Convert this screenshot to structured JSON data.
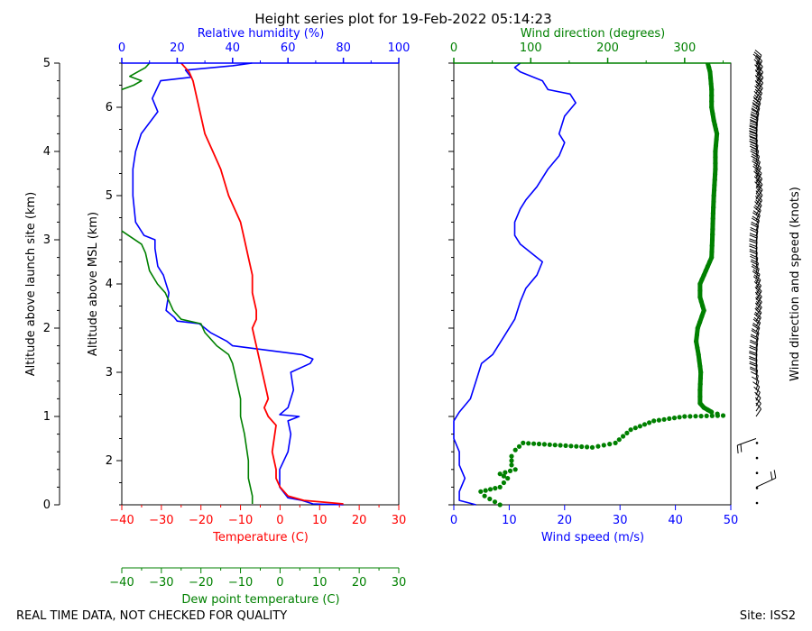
{
  "title": "Height series plot for 19-Feb-2022 05:14:23",
  "footer": {
    "quality_note": "REAL TIME DATA, NOT CHECKED FOR QUALITY",
    "site": "Site: ISS2"
  },
  "colors": {
    "temperature": "#ff0000",
    "dew_point": "#008000",
    "humidity": "#0000ff",
    "wind_speed": "#0000ff",
    "wind_direction": "#008000",
    "barbs": "#000000"
  },
  "chart_data": [
    {
      "type": "line",
      "name": "thermo-panel",
      "left_axis": {
        "label": "Altitude above launch site (km)",
        "ticks": [
          "0",
          "1",
          "2",
          "3",
          "4",
          "5"
        ],
        "lim": [
          0,
          5
        ]
      },
      "inner_axis": {
        "label": "Altitude above MSL (km)",
        "ticks": [
          "2",
          "3",
          "4",
          "5",
          "6"
        ],
        "lim": [
          1.5,
          6.5
        ]
      },
      "bottom_axis": {
        "label": "Temperature (C)",
        "ticks": [
          "−40",
          "−30",
          "−20",
          "−10",
          "0",
          "10",
          "20",
          "30"
        ],
        "lim": [
          -40,
          30
        ]
      },
      "bottom_axis_2": {
        "label": "Dew point temperature (C)",
        "ticks": [
          "−40",
          "−30",
          "−20",
          "−10",
          "0",
          "10",
          "20",
          "30"
        ],
        "lim": [
          -40,
          30
        ]
      },
      "top_axis": {
        "label": "Relative humidity (%)",
        "ticks": [
          "0",
          "20",
          "40",
          "60",
          "80",
          "100"
        ],
        "lim": [
          0,
          100
        ]
      },
      "series": [
        {
          "name": "Temperature",
          "x_units": "C",
          "points": [
            [
              16,
              0.01
            ],
            [
              6,
              0.05
            ],
            [
              2,
              0.1
            ],
            [
              0,
              0.2
            ],
            [
              -1,
              0.3
            ],
            [
              -1,
              0.4
            ],
            [
              -2,
              0.6
            ],
            [
              -1,
              0.9
            ],
            [
              -3,
              1.0
            ],
            [
              -4,
              1.1
            ],
            [
              -3,
              1.2
            ],
            [
              -4,
              1.4
            ],
            [
              -5,
              1.6
            ],
            [
              -6,
              1.8
            ],
            [
              -7,
              2.0
            ],
            [
              -6,
              2.1
            ],
            [
              -6,
              2.2
            ],
            [
              -7,
              2.4
            ],
            [
              -7,
              2.6
            ],
            [
              -8,
              2.8
            ],
            [
              -9,
              3.0
            ],
            [
              -10,
              3.2
            ],
            [
              -11,
              3.3
            ],
            [
              -13,
              3.5
            ],
            [
              -15,
              3.8
            ],
            [
              -17,
              4.0
            ],
            [
              -19,
              4.2
            ],
            [
              -20,
              4.4
            ],
            [
              -21,
              4.6
            ],
            [
              -22,
              4.8
            ],
            [
              -23,
              4.9
            ],
            [
              -25,
              5.0
            ]
          ]
        },
        {
          "name": "Dew point",
          "x_units": "C",
          "points": [
            [
              -7,
              0.01
            ],
            [
              -7,
              0.1
            ],
            [
              -8,
              0.3
            ],
            [
              -8,
              0.5
            ],
            [
              -9,
              0.8
            ],
            [
              -10,
              1.0
            ],
            [
              -10,
              1.2
            ],
            [
              -11,
              1.4
            ],
            [
              -12,
              1.6
            ],
            [
              -13,
              1.7
            ],
            [
              -16,
              1.8
            ],
            [
              -19,
              1.95
            ],
            [
              -20,
              2.05
            ],
            [
              -25,
              2.1
            ],
            [
              -27,
              2.2
            ],
            [
              -29,
              2.4
            ],
            [
              -31,
              2.5
            ],
            [
              -33,
              2.65
            ],
            [
              -34,
              2.85
            ],
            [
              -35,
              2.95
            ],
            [
              -40,
              3.1
            ]
          ]
        },
        {
          "name": "Dew point (upper)",
          "x_units": "C",
          "points": [
            [
              -40,
              4.7
            ],
            [
              -37,
              4.75
            ],
            [
              -35,
              4.8
            ],
            [
              -38,
              4.85
            ],
            [
              -36,
              4.9
            ],
            [
              -34,
              4.95
            ],
            [
              -33,
              5.0
            ]
          ]
        },
        {
          "name": "Relative humidity",
          "x_units": "%",
          "points": [
            [
              80,
              0.0
            ],
            [
              69,
              0.01
            ],
            [
              65,
              0.05
            ],
            [
              60,
              0.08
            ],
            [
              57,
              0.2
            ],
            [
              57,
              0.4
            ],
            [
              60,
              0.6
            ],
            [
              61,
              0.8
            ],
            [
              60,
              0.95
            ],
            [
              64,
              1.0
            ],
            [
              57,
              1.02
            ],
            [
              60,
              1.1
            ],
            [
              62,
              1.3
            ],
            [
              61,
              1.5
            ],
            [
              68,
              1.6
            ],
            [
              69,
              1.65
            ],
            [
              65,
              1.7
            ],
            [
              40,
              1.8
            ],
            [
              38,
              1.85
            ],
            [
              32,
              1.95
            ],
            [
              28,
              2.05
            ],
            [
              20,
              2.08
            ],
            [
              19,
              2.12
            ],
            [
              16,
              2.2
            ],
            [
              17,
              2.4
            ],
            [
              16,
              2.5
            ],
            [
              15,
              2.6
            ],
            [
              13,
              2.7
            ],
            [
              12,
              2.9
            ],
            [
              12,
              3.0
            ],
            [
              8,
              3.05
            ],
            [
              5,
              3.2
            ],
            [
              4,
              3.5
            ],
            [
              4,
              3.8
            ],
            [
              5,
              4.0
            ],
            [
              7,
              4.2
            ],
            [
              13,
              4.45
            ],
            [
              11,
              4.6
            ],
            [
              14,
              4.8
            ],
            [
              25,
              4.84
            ],
            [
              23,
              4.92
            ],
            [
              40,
              4.97
            ],
            [
              47,
              5.0
            ]
          ]
        }
      ]
    },
    {
      "type": "line",
      "name": "wind-panel",
      "bottom_axis": {
        "label": "Wind speed (m/s)",
        "ticks": [
          "0",
          "10",
          "20",
          "30",
          "40",
          "50"
        ],
        "lim": [
          0,
          50
        ]
      },
      "top_axis": {
        "label": "Wind direction (degrees)",
        "ticks": [
          "0",
          "100",
          "200",
          "300"
        ],
        "lim": [
          0,
          360
        ]
      },
      "series": [
        {
          "name": "Wind speed",
          "x_units": "m/s",
          "points": [
            [
              4,
              0.0
            ],
            [
              1,
              0.05
            ],
            [
              1,
              0.15
            ],
            [
              2,
              0.3
            ],
            [
              1,
              0.45
            ],
            [
              1,
              0.6
            ],
            [
              0,
              0.75
            ],
            [
              0,
              0.95
            ],
            [
              1,
              1.05
            ],
            [
              3,
              1.2
            ],
            [
              4,
              1.4
            ],
            [
              5,
              1.6
            ],
            [
              7,
              1.7
            ],
            [
              9,
              1.9
            ],
            [
              11,
              2.1
            ],
            [
              12,
              2.3
            ],
            [
              13,
              2.45
            ],
            [
              15,
              2.6
            ],
            [
              16,
              2.75
            ],
            [
              14,
              2.85
            ],
            [
              12,
              2.95
            ],
            [
              11,
              3.05
            ],
            [
              11,
              3.2
            ],
            [
              12,
              3.35
            ],
            [
              13,
              3.45
            ],
            [
              15,
              3.6
            ],
            [
              17,
              3.8
            ],
            [
              19,
              3.95
            ],
            [
              20,
              4.1
            ],
            [
              19,
              4.2
            ],
            [
              20,
              4.4
            ],
            [
              22,
              4.55
            ],
            [
              21,
              4.65
            ],
            [
              17,
              4.7
            ],
            [
              16,
              4.8
            ],
            [
              12,
              4.9
            ],
            [
              11,
              4.95
            ],
            [
              12,
              5.0
            ]
          ]
        },
        {
          "name": "Wind direction",
          "x_units": "degrees",
          "points": [
            [
              60,
              0.0
            ],
            [
              40,
              0.1
            ],
            [
              35,
              0.15
            ],
            [
              60,
              0.2
            ],
            [
              70,
              0.3
            ],
            [
              60,
              0.35
            ],
            [
              80,
              0.4
            ],
            [
              75,
              0.45
            ],
            [
              75,
              0.55
            ],
            [
              80,
              0.62
            ],
            [
              90,
              0.7
            ],
            [
              180,
              0.65
            ],
            [
              210,
              0.7
            ],
            [
              230,
              0.85
            ],
            [
              260,
              0.95
            ],
            [
              300,
              1.0
            ],
            [
              350,
              1.01
            ],
            [
              335,
              1.05
            ],
            [
              325,
              1.1
            ],
            [
              320,
              1.15
            ],
            [
              320,
              1.3
            ],
            [
              321,
              1.5
            ],
            [
              318,
              1.7
            ],
            [
              315,
              1.85
            ],
            [
              317,
              2.0
            ],
            [
              325,
              2.2
            ],
            [
              320,
              2.35
            ],
            [
              320,
              2.5
            ],
            [
              325,
              2.6
            ],
            [
              335,
              2.8
            ],
            [
              336,
              3.0
            ],
            [
              337,
              3.3
            ],
            [
              338,
              3.5
            ],
            [
              340,
              3.8
            ],
            [
              340,
              4.0
            ],
            [
              342,
              4.2
            ],
            [
              338,
              4.35
            ],
            [
              335,
              4.5
            ],
            [
              335,
              4.7
            ],
            [
              333,
              4.9
            ],
            [
              330,
              5.0
            ]
          ]
        }
      ]
    },
    {
      "type": "barbs",
      "name": "barb-panel",
      "ylabel": "Wind direction and speed (knots)",
      "barbs_available_from_km": 1.0,
      "calm_dots_below_km": 0.85
    }
  ]
}
